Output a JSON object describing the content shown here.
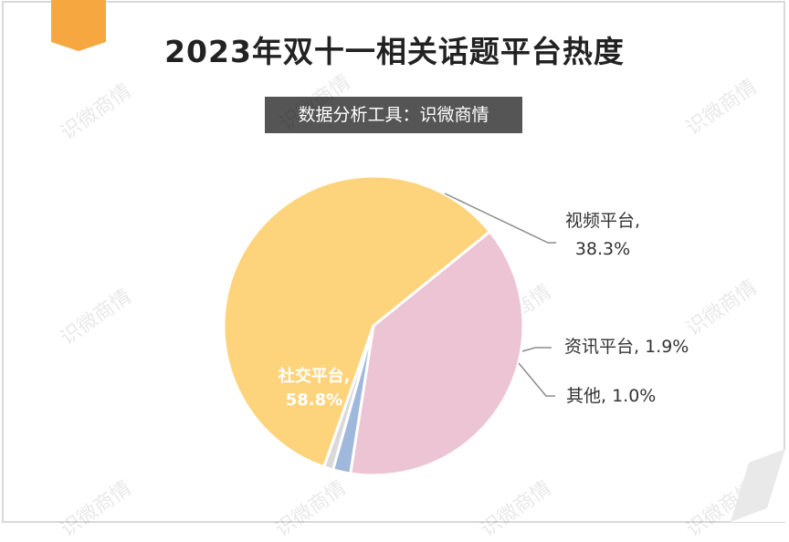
{
  "title": "2023年双十一相关话题平台热度",
  "subtitle": "数据分析工具：识微商情",
  "watermark_text": "识微商情",
  "colors": {
    "badge": "#f7a740",
    "subtitle_bg": "#555555"
  },
  "chart_data": {
    "type": "pie",
    "title": "2023年双十一相关话题平台热度",
    "slices": [
      {
        "name": "视频平台",
        "value": 38.3,
        "label": "视频平台,",
        "pct": "38.3%",
        "color": "#edc4d3"
      },
      {
        "name": "资讯平台",
        "value": 1.9,
        "label": "资讯平台, 1.9%",
        "pct": "",
        "color": "#9fb8dc"
      },
      {
        "name": "其他",
        "value": 1.0,
        "label": "其他, 1.0%",
        "pct": "",
        "color": "#d9d9d9"
      },
      {
        "name": "社交平台",
        "value": 58.8,
        "label": "社交平台,",
        "pct": "58.8%",
        "color": "#fdd47c"
      }
    ],
    "start_angle_deg": -39,
    "direction": "clockwise"
  }
}
